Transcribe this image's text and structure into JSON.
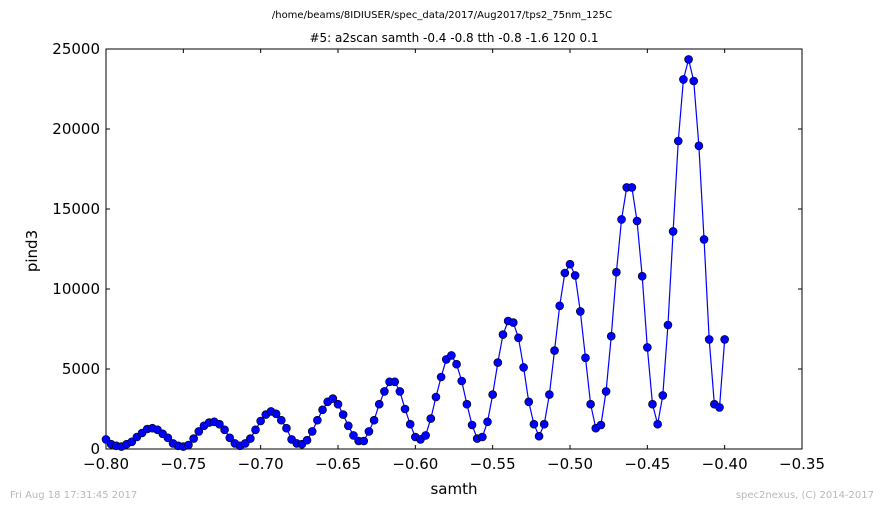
{
  "header": {
    "suptitle": "/home/beams/8IDIUSER/spec_data/2017/Aug2017/tps2_75nm_125C",
    "title": "#5: a2scan  samth -0.4 -0.8  tth -0.8 -1.6  120 0.1"
  },
  "footer": {
    "left": "Fri Aug 18 17:31:45 2017",
    "right": "spec2nexus, (C) 2014-2017"
  },
  "chart_data": {
    "type": "line",
    "xlabel": "samth",
    "ylabel": "pind3",
    "xlim": [
      -0.8,
      -0.35
    ],
    "ylim": [
      0,
      25000
    ],
    "xticks": [
      "−0.80",
      "−0.75",
      "−0.70",
      "−0.65",
      "−0.60",
      "−0.55",
      "−0.50",
      "−0.45",
      "−0.40",
      "−0.35"
    ],
    "yticks": [
      "0",
      "5000",
      "10000",
      "15000",
      "20000",
      "25000"
    ],
    "grid": false,
    "color": "#0000ff",
    "marker": "circle",
    "series": [
      {
        "name": "",
        "x": [
          -0.8,
          -0.79667,
          -0.79333,
          -0.79,
          -0.78667,
          -0.78333,
          -0.78,
          -0.77667,
          -0.77333,
          -0.77,
          -0.76667,
          -0.76333,
          -0.76,
          -0.75667,
          -0.75333,
          -0.75,
          -0.74667,
          -0.74333,
          -0.74,
          -0.73667,
          -0.73333,
          -0.73,
          -0.72667,
          -0.72333,
          -0.72,
          -0.71667,
          -0.71333,
          -0.71,
          -0.70667,
          -0.70333,
          -0.7,
          -0.69667,
          -0.69333,
          -0.69,
          -0.68667,
          -0.68333,
          -0.68,
          -0.67667,
          -0.67333,
          -0.67,
          -0.66667,
          -0.66333,
          -0.66,
          -0.65667,
          -0.65333,
          -0.65,
          -0.64667,
          -0.64333,
          -0.64,
          -0.63667,
          -0.63333,
          -0.63,
          -0.62667,
          -0.62333,
          -0.62,
          -0.61667,
          -0.61333,
          -0.61,
          -0.60667,
          -0.60333,
          -0.6,
          -0.59667,
          -0.59333,
          -0.59,
          -0.58667,
          -0.58333,
          -0.58,
          -0.57667,
          -0.57333,
          -0.57,
          -0.56667,
          -0.56333,
          -0.56,
          -0.55667,
          -0.55333,
          -0.55,
          -0.54667,
          -0.54333,
          -0.54,
          -0.53667,
          -0.53333,
          -0.53,
          -0.52667,
          -0.52333,
          -0.52,
          -0.51667,
          -0.51333,
          -0.51,
          -0.50667,
          -0.50333,
          -0.5,
          -0.49667,
          -0.49333,
          -0.49,
          -0.48667,
          -0.48333,
          -0.48,
          -0.47667,
          -0.47333,
          -0.47,
          -0.46667,
          -0.46333,
          -0.46,
          -0.45667,
          -0.45333,
          -0.45,
          -0.44667,
          -0.44333,
          -0.44,
          -0.43667,
          -0.43333,
          -0.43,
          -0.42667,
          -0.42333,
          -0.42,
          -0.41667,
          -0.41333,
          -0.41,
          -0.40667,
          -0.40333,
          -0.4
        ],
        "y": [
          600,
          300,
          200,
          150,
          300,
          450,
          750,
          1000,
          1250,
          1300,
          1200,
          950,
          700,
          350,
          200,
          150,
          250,
          650,
          1100,
          1450,
          1650,
          1700,
          1550,
          1200,
          700,
          350,
          200,
          350,
          650,
          1200,
          1750,
          2150,
          2350,
          2200,
          1800,
          1300,
          600,
          350,
          300,
          550,
          1100,
          1800,
          2450,
          2950,
          3150,
          2800,
          2150,
          1450,
          850,
          500,
          500,
          1100,
          1800,
          2800,
          3600,
          4200,
          4200,
          3600,
          2500,
          1550,
          750,
          600,
          850,
          1900,
          3250,
          4500,
          5600,
          5850,
          5300,
          4250,
          2800,
          1500,
          650,
          750,
          1700,
          3400,
          5400,
          7150,
          8000,
          7900,
          6950,
          5100,
          2950,
          1550,
          800,
          1550,
          3400,
          6150,
          8950,
          11000,
          11550,
          10850,
          8600,
          5700,
          2800,
          1300,
          1500,
          3600,
          7050,
          11050,
          14350,
          16350,
          16350,
          14250,
          10800,
          6350,
          2800,
          1550,
          3350,
          7750,
          13600,
          19250,
          23100,
          24350,
          23000,
          18950,
          13100,
          6850,
          2800,
          2600,
          6850
        ]
      }
    ]
  }
}
